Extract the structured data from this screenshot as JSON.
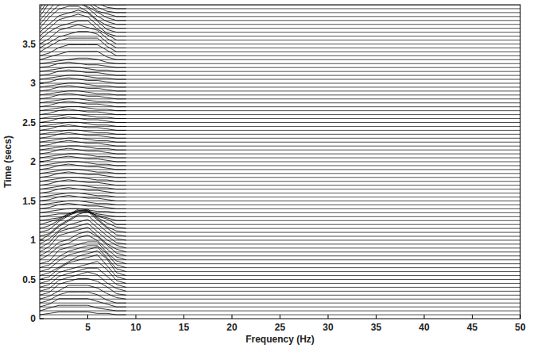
{
  "chart_data": {
    "type": "wiggle",
    "x_label": "Frequency (Hz)",
    "y_label": "Time (secs)",
    "color": "#000000",
    "xlim": [
      0,
      50
    ],
    "xticks": [
      5,
      10,
      15,
      20,
      25,
      30,
      35,
      40,
      45,
      50
    ],
    "ylim": [
      0,
      4
    ],
    "yticks": [
      0,
      0.5,
      1,
      1.5,
      2,
      2.5,
      3,
      3.5
    ],
    "x": [
      1,
      2,
      3,
      4,
      5,
      6,
      7,
      8,
      9
    ],
    "traces": [
      {
        "time": 0.05,
        "values": [
          0.05,
          0.1,
          0.1,
          0.1,
          0.1,
          0.05,
          0.05,
          0,
          0
        ]
      },
      {
        "time": 0.1,
        "values": [
          0.1,
          0.2,
          0.2,
          0.2,
          0.2,
          0.1,
          0.05,
          0,
          0
        ]
      },
      {
        "time": 0.15,
        "values": [
          0.1,
          0.3,
          0.3,
          0.3,
          0.3,
          0.2,
          0.1,
          0,
          0
        ]
      },
      {
        "time": 0.2,
        "values": [
          0.1,
          0.3,
          0.4,
          0.4,
          0.4,
          0.3,
          0.1,
          0,
          0
        ]
      },
      {
        "time": 0.25,
        "values": [
          0.1,
          0.3,
          0.5,
          0.5,
          0.5,
          0.4,
          0.2,
          0.05,
          0
        ]
      },
      {
        "time": 0.3,
        "values": [
          0.1,
          0.4,
          0.5,
          0.6,
          0.6,
          0.5,
          0.3,
          0.05,
          0
        ]
      },
      {
        "time": 0.35,
        "values": [
          0.1,
          0.4,
          0.5,
          0.6,
          0.7,
          0.6,
          0.3,
          0.1,
          0
        ]
      },
      {
        "time": 0.4,
        "values": [
          0.1,
          0.4,
          0.5,
          0.6,
          0.7,
          0.7,
          0.4,
          0.1,
          0
        ]
      },
      {
        "time": 0.45,
        "values": [
          0.1,
          0.4,
          0.5,
          0.6,
          0.7,
          0.8,
          0.5,
          0.1,
          0
        ]
      },
      {
        "time": 0.5,
        "values": [
          0.1,
          0.4,
          0.6,
          0.7,
          0.8,
          0.9,
          0.5,
          0.1,
          0
        ]
      },
      {
        "time": 0.55,
        "values": [
          0.1,
          0.3,
          0.5,
          0.7,
          0.8,
          0.9,
          0.6,
          0.1,
          0
        ]
      },
      {
        "time": 0.6,
        "values": [
          0.1,
          0.4,
          0.6,
          0.7,
          0.8,
          0.9,
          0.5,
          0.1,
          0
        ]
      },
      {
        "time": 0.65,
        "values": [
          0.1,
          0.4,
          0.6,
          0.7,
          0.8,
          0.8,
          0.5,
          0.1,
          0
        ]
      },
      {
        "time": 0.7,
        "values": [
          0.1,
          0.5,
          0.6,
          0.7,
          0.8,
          0.8,
          0.4,
          0.1,
          0
        ]
      },
      {
        "time": 0.75,
        "values": [
          0.2,
          0.5,
          0.6,
          0.8,
          0.9,
          0.7,
          0.4,
          0.1,
          0
        ]
      },
      {
        "time": 0.8,
        "values": [
          0.2,
          0.5,
          0.6,
          0.8,
          0.9,
          0.7,
          0.4,
          0.1,
          0
        ]
      },
      {
        "time": 0.85,
        "values": [
          0.2,
          0.6,
          0.7,
          0.8,
          0.9,
          0.6,
          0.3,
          0.1,
          0
        ]
      },
      {
        "time": 0.9,
        "values": [
          0.2,
          0.6,
          0.7,
          0.8,
          0.9,
          0.6,
          0.3,
          0.1,
          0
        ]
      },
      {
        "time": 0.95,
        "values": [
          0.2,
          0.5,
          0.7,
          0.8,
          0.9,
          0.6,
          0.3,
          0.05,
          0
        ]
      },
      {
        "time": 1,
        "values": [
          0.2,
          0.5,
          0.7,
          0.9,
          0.9,
          0.6,
          0.3,
          0.05,
          0
        ]
      },
      {
        "time": 1.05,
        "values": [
          0.1,
          0.4,
          0.6,
          0.8,
          0.9,
          0.6,
          0.3,
          0.05,
          0
        ]
      },
      {
        "time": 1.1,
        "values": [
          0.1,
          0.4,
          0.6,
          0.8,
          0.8,
          0.5,
          0.2,
          0.05,
          0
        ]
      },
      {
        "time": 1.15,
        "values": [
          0.1,
          0.3,
          0.5,
          0.7,
          0.7,
          0.4,
          0.2,
          0.05,
          0
        ]
      },
      {
        "time": 1.2,
        "values": [
          0.1,
          0.2,
          0.4,
          0.5,
          0.5,
          0.3,
          0.2,
          0,
          0
        ]
      },
      {
        "time": 1.25,
        "values": [
          0.05,
          0.1,
          0.2,
          0.3,
          0.3,
          0.2,
          0.1,
          0,
          0
        ]
      },
      {
        "time": 1.3,
        "values": [
          0.05,
          0.1,
          0.1,
          0.2,
          0.2,
          0.1,
          0.05,
          0,
          0
        ]
      },
      {
        "time": 1.35,
        "values": [
          0.05,
          0.1,
          0.15,
          0.15,
          0.1,
          0.05,
          0.05,
          0,
          0
        ]
      },
      {
        "time": 1.4,
        "values": [
          0.05,
          0.15,
          0.2,
          0.15,
          0.1,
          0.1,
          0.05,
          0,
          0
        ]
      },
      {
        "time": 1.45,
        "values": [
          0.05,
          0.1,
          0.15,
          0.15,
          0.1,
          0.05,
          0.05,
          0,
          0
        ]
      },
      {
        "time": 1.5,
        "values": [
          0.05,
          0.15,
          0.2,
          0.15,
          0.1,
          0.1,
          0.05,
          0,
          0
        ]
      },
      {
        "time": 1.55,
        "values": [
          0.05,
          0.1,
          0.15,
          0.15,
          0.1,
          0.05,
          0.05,
          0,
          0
        ]
      },
      {
        "time": 1.6,
        "values": [
          0.05,
          0.15,
          0.2,
          0.15,
          0.1,
          0.1,
          0.05,
          0,
          0
        ]
      },
      {
        "time": 1.65,
        "values": [
          0.05,
          0.1,
          0.15,
          0.15,
          0.1,
          0.05,
          0.05,
          0,
          0
        ]
      },
      {
        "time": 1.7,
        "values": [
          0.05,
          0.15,
          0.2,
          0.15,
          0.1,
          0.1,
          0.05,
          0,
          0
        ]
      },
      {
        "time": 1.75,
        "values": [
          0.05,
          0.1,
          0.15,
          0.15,
          0.1,
          0.05,
          0.05,
          0,
          0
        ]
      },
      {
        "time": 1.8,
        "values": [
          0.05,
          0.15,
          0.2,
          0.15,
          0.1,
          0.1,
          0.05,
          0,
          0
        ]
      },
      {
        "time": 1.85,
        "values": [
          0.05,
          0.1,
          0.15,
          0.15,
          0.1,
          0.05,
          0.05,
          0,
          0
        ]
      },
      {
        "time": 1.9,
        "values": [
          0.05,
          0.15,
          0.2,
          0.15,
          0.1,
          0.1,
          0.05,
          0,
          0
        ]
      },
      {
        "time": 1.95,
        "values": [
          0.05,
          0.1,
          0.15,
          0.15,
          0.1,
          0.05,
          0.05,
          0,
          0
        ]
      },
      {
        "time": 2,
        "values": [
          0.05,
          0.15,
          0.2,
          0.15,
          0.1,
          0.1,
          0.05,
          0,
          0
        ]
      },
      {
        "time": 2.05,
        "values": [
          0.05,
          0.1,
          0.15,
          0.15,
          0.1,
          0.05,
          0.05,
          0,
          0
        ]
      },
      {
        "time": 2.1,
        "values": [
          0.05,
          0.15,
          0.2,
          0.15,
          0.1,
          0.1,
          0.05,
          0,
          0
        ]
      },
      {
        "time": 2.15,
        "values": [
          0.05,
          0.1,
          0.15,
          0.15,
          0.1,
          0.05,
          0.05,
          0,
          0
        ]
      },
      {
        "time": 2.2,
        "values": [
          0.05,
          0.15,
          0.2,
          0.15,
          0.1,
          0.1,
          0.05,
          0,
          0
        ]
      },
      {
        "time": 2.25,
        "values": [
          0.05,
          0.1,
          0.15,
          0.15,
          0.1,
          0.05,
          0.05,
          0,
          0
        ]
      },
      {
        "time": 2.3,
        "values": [
          0.05,
          0.15,
          0.2,
          0.15,
          0.1,
          0.1,
          0.05,
          0,
          0
        ]
      },
      {
        "time": 2.35,
        "values": [
          0.05,
          0.1,
          0.15,
          0.15,
          0.1,
          0.05,
          0.05,
          0,
          0
        ]
      },
      {
        "time": 2.4,
        "values": [
          0.05,
          0.15,
          0.2,
          0.15,
          0.1,
          0.1,
          0.05,
          0,
          0
        ]
      },
      {
        "time": 2.45,
        "values": [
          0.05,
          0.1,
          0.15,
          0.15,
          0.1,
          0.05,
          0.05,
          0,
          0
        ]
      },
      {
        "time": 2.5,
        "values": [
          0.05,
          0.15,
          0.2,
          0.15,
          0.1,
          0.1,
          0.05,
          0,
          0
        ]
      },
      {
        "time": 2.55,
        "values": [
          0.05,
          0.1,
          0.15,
          0.15,
          0.1,
          0.05,
          0.05,
          0,
          0
        ]
      },
      {
        "time": 2.6,
        "values": [
          0.05,
          0.15,
          0.2,
          0.15,
          0.1,
          0.1,
          0.05,
          0,
          0
        ]
      },
      {
        "time": 2.65,
        "values": [
          0.05,
          0.1,
          0.15,
          0.15,
          0.1,
          0.05,
          0.05,
          0,
          0
        ]
      },
      {
        "time": 2.7,
        "values": [
          0.05,
          0.15,
          0.2,
          0.15,
          0.1,
          0.1,
          0.05,
          0,
          0
        ]
      },
      {
        "time": 2.75,
        "values": [
          0.05,
          0.1,
          0.15,
          0.15,
          0.1,
          0.05,
          0.05,
          0,
          0
        ]
      },
      {
        "time": 2.8,
        "values": [
          0.05,
          0.15,
          0.2,
          0.15,
          0.1,
          0.1,
          0.05,
          0,
          0
        ]
      },
      {
        "time": 2.85,
        "values": [
          0.05,
          0.1,
          0.15,
          0.15,
          0.1,
          0.05,
          0.05,
          0,
          0
        ]
      },
      {
        "time": 2.9,
        "values": [
          0.05,
          0.15,
          0.2,
          0.15,
          0.1,
          0.1,
          0.05,
          0,
          0
        ]
      },
      {
        "time": 2.95,
        "values": [
          0.05,
          0.1,
          0.15,
          0.15,
          0.1,
          0.05,
          0.05,
          0,
          0
        ]
      },
      {
        "time": 3,
        "values": [
          0.05,
          0.15,
          0.2,
          0.15,
          0.1,
          0.1,
          0.05,
          0,
          0
        ]
      },
      {
        "time": 3.05,
        "values": [
          0.05,
          0.1,
          0.15,
          0.15,
          0.1,
          0.05,
          0.05,
          0,
          0
        ]
      },
      {
        "time": 3.1,
        "values": [
          0.05,
          0.15,
          0.2,
          0.15,
          0.1,
          0.1,
          0.05,
          0,
          0
        ]
      },
      {
        "time": 3.15,
        "values": [
          0.05,
          0.1,
          0.15,
          0.15,
          0.1,
          0.05,
          0.05,
          0,
          0
        ]
      },
      {
        "time": 3.2,
        "values": [
          0.05,
          0.15,
          0.2,
          0.15,
          0.1,
          0.1,
          0.05,
          0,
          0
        ]
      },
      {
        "time": 3.25,
        "values": [
          0.05,
          0.1,
          0.15,
          0.2,
          0.2,
          0.15,
          0.05,
          0,
          0
        ]
      },
      {
        "time": 3.3,
        "values": [
          0.1,
          0.2,
          0.3,
          0.3,
          0.3,
          0.3,
          0.1,
          0,
          0
        ]
      },
      {
        "time": 3.35,
        "values": [
          0.1,
          0.3,
          0.4,
          0.4,
          0.4,
          0.4,
          0.2,
          0,
          0
        ]
      },
      {
        "time": 3.4,
        "values": [
          0.2,
          0.4,
          0.5,
          0.5,
          0.5,
          0.5,
          0.2,
          0,
          0
        ]
      },
      {
        "time": 3.45,
        "values": [
          0.2,
          0.4,
          0.5,
          0.6,
          0.6,
          0.5,
          0.2,
          0,
          0
        ]
      },
      {
        "time": 3.5,
        "values": [
          0.2,
          0.5,
          0.6,
          0.7,
          0.6,
          0.5,
          0.2,
          0,
          0
        ]
      },
      {
        "time": 3.55,
        "values": [
          0.3,
          0.5,
          0.6,
          0.7,
          0.7,
          0.4,
          0.2,
          0,
          0
        ]
      },
      {
        "time": 3.6,
        "values": [
          0.3,
          0.6,
          0.7,
          0.8,
          0.7,
          0.4,
          0.1,
          0,
          0
        ]
      },
      {
        "time": 3.65,
        "values": [
          0.3,
          0.6,
          0.7,
          0.8,
          0.7,
          0.4,
          0.1,
          0,
          0
        ]
      },
      {
        "time": 3.7,
        "values": [
          0.4,
          0.7,
          0.8,
          0.8,
          0.6,
          0.3,
          0.1,
          0,
          0
        ]
      },
      {
        "time": 3.75,
        "values": [
          0.4,
          0.7,
          0.8,
          0.8,
          0.6,
          0.3,
          0.1,
          0,
          0
        ]
      },
      {
        "time": 3.8,
        "values": [
          0.4,
          0.8,
          0.8,
          0.7,
          0.5,
          0.3,
          0.1,
          0,
          0
        ]
      },
      {
        "time": 3.85,
        "values": [
          0.5,
          0.8,
          0.8,
          0.7,
          0.5,
          0.2,
          0.1,
          0,
          0
        ]
      },
      {
        "time": 3.9,
        "values": [
          0.5,
          0.8,
          0.8,
          0.6,
          0.4,
          0.2,
          0.05,
          0,
          0
        ]
      },
      {
        "time": 3.95,
        "values": [
          0.5,
          0.8,
          0.7,
          0.6,
          0.4,
          0.2,
          0.05,
          0,
          0
        ]
      },
      {
        "time": 4,
        "values": [
          0.4,
          0.7,
          0.6,
          0.5,
          0.3,
          0.1,
          0,
          0,
          0
        ]
      }
    ]
  }
}
